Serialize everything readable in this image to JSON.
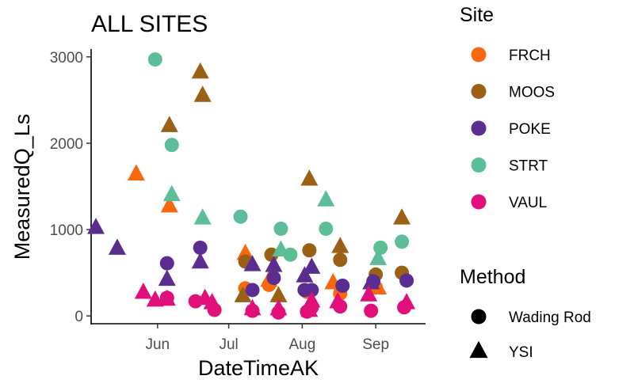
{
  "chart_data": {
    "type": "scatter",
    "title": "ALL SITES",
    "xlabel": "DateTimeAK",
    "ylabel": "MeasuredQ_Ls",
    "x_ticks": [
      "Jun",
      "Jul",
      "Aug",
      "Sep"
    ],
    "y_ticks": [
      0,
      1000,
      2000,
      3000
    ],
    "ylim": [
      -90,
      3090
    ],
    "xlim": [
      "2019-05-04",
      "2019-09-22"
    ],
    "grid": false,
    "legend_site": {
      "title": "Site",
      "entries": [
        {
          "name": "FRCH",
          "color": "#F8690F"
        },
        {
          "name": "MOOS",
          "color": "#9A6116"
        },
        {
          "name": "POKE",
          "color": "#5C2D91"
        },
        {
          "name": "STRT",
          "color": "#5BBE96"
        },
        {
          "name": "VAUL",
          "color": "#E10F7A"
        }
      ]
    },
    "legend_method": {
      "title": "Method",
      "entries": [
        {
          "name": "Wading Rod",
          "shape": "circle"
        },
        {
          "name": "YSI",
          "shape": "triangle"
        }
      ]
    },
    "series": [
      {
        "site": "FRCH",
        "method": "YSI",
        "points": [
          [
            "2019-05-23",
            1640
          ],
          [
            "2019-06-06",
            1270
          ],
          [
            "2019-07-08",
            720
          ],
          [
            "2019-07-18",
            410
          ],
          [
            "2019-08-14",
            380
          ],
          [
            "2019-09-02",
            320
          ]
        ]
      },
      {
        "site": "FRCH",
        "method": "Wading Rod",
        "points": [
          [
            "2019-07-08",
            320
          ],
          [
            "2019-07-18",
            360
          ],
          [
            "2019-08-03",
            280
          ],
          [
            "2019-08-17",
            260
          ],
          [
            "2019-09-01",
            330
          ]
        ]
      },
      {
        "site": "MOOS",
        "method": "YSI",
        "points": [
          [
            "2019-06-06",
            2200
          ],
          [
            "2019-06-19",
            2820
          ],
          [
            "2019-06-20",
            2550
          ],
          [
            "2019-07-07",
            230
          ],
          [
            "2019-07-22",
            230
          ],
          [
            "2019-08-04",
            1580
          ],
          [
            "2019-08-17",
            800
          ],
          [
            "2019-09-12",
            1130
          ]
        ]
      },
      {
        "site": "MOOS",
        "method": "Wading Rod",
        "points": [
          [
            "2019-07-08",
            630
          ],
          [
            "2019-07-19",
            710
          ],
          [
            "2019-08-04",
            760
          ],
          [
            "2019-08-17",
            650
          ],
          [
            "2019-09-01",
            480
          ],
          [
            "2019-09-12",
            500
          ]
        ]
      },
      {
        "site": "POKE",
        "method": "YSI",
        "points": [
          [
            "2019-05-06",
            1020
          ],
          [
            "2019-05-15",
            780
          ],
          [
            "2019-06-05",
            420
          ],
          [
            "2019-06-19",
            620
          ],
          [
            "2019-07-11",
            590
          ],
          [
            "2019-07-20",
            580
          ],
          [
            "2019-08-02",
            460
          ],
          [
            "2019-08-05",
            560
          ],
          [
            "2019-08-30",
            380
          ]
        ]
      },
      {
        "site": "POKE",
        "method": "Wading Rod",
        "points": [
          [
            "2019-06-05",
            610
          ],
          [
            "2019-06-19",
            790
          ],
          [
            "2019-07-11",
            300
          ],
          [
            "2019-07-20",
            440
          ],
          [
            "2019-08-02",
            300
          ],
          [
            "2019-08-05",
            300
          ],
          [
            "2019-08-18",
            350
          ],
          [
            "2019-08-31",
            400
          ],
          [
            "2019-09-14",
            410
          ]
        ]
      },
      {
        "site": "STRT",
        "method": "YSI",
        "points": [
          [
            "2019-06-07",
            1400
          ],
          [
            "2019-06-20",
            1130
          ],
          [
            "2019-07-23",
            760
          ],
          [
            "2019-08-11",
            1340
          ],
          [
            "2019-09-02",
            660
          ]
        ]
      },
      {
        "site": "STRT",
        "method": "Wading Rod",
        "points": [
          [
            "2019-05-31",
            2970
          ],
          [
            "2019-06-07",
            1980
          ],
          [
            "2019-07-06",
            1150
          ],
          [
            "2019-07-23",
            1010
          ],
          [
            "2019-07-27",
            710
          ],
          [
            "2019-08-11",
            1010
          ],
          [
            "2019-09-03",
            790
          ],
          [
            "2019-09-12",
            860
          ]
        ]
      },
      {
        "site": "VAUL",
        "method": "YSI",
        "points": [
          [
            "2019-05-26",
            270
          ],
          [
            "2019-05-31",
            180
          ],
          [
            "2019-06-05",
            190
          ],
          [
            "2019-06-21",
            200
          ],
          [
            "2019-06-24",
            150
          ],
          [
            "2019-07-11",
            80
          ],
          [
            "2019-07-22",
            80
          ],
          [
            "2019-08-04",
            60
          ],
          [
            "2019-08-05",
            170
          ],
          [
            "2019-08-16",
            160
          ],
          [
            "2019-08-29",
            240
          ],
          [
            "2019-09-14",
            150
          ]
        ]
      },
      {
        "site": "VAUL",
        "method": "Wading Rod",
        "points": [
          [
            "2019-06-05",
            210
          ],
          [
            "2019-06-17",
            170
          ],
          [
            "2019-06-25",
            70
          ],
          [
            "2019-07-11",
            60
          ],
          [
            "2019-07-22",
            40
          ],
          [
            "2019-08-03",
            50
          ],
          [
            "2019-08-05",
            100
          ],
          [
            "2019-08-17",
            110
          ],
          [
            "2019-08-30",
            60
          ],
          [
            "2019-09-13",
            100
          ]
        ]
      }
    ]
  }
}
